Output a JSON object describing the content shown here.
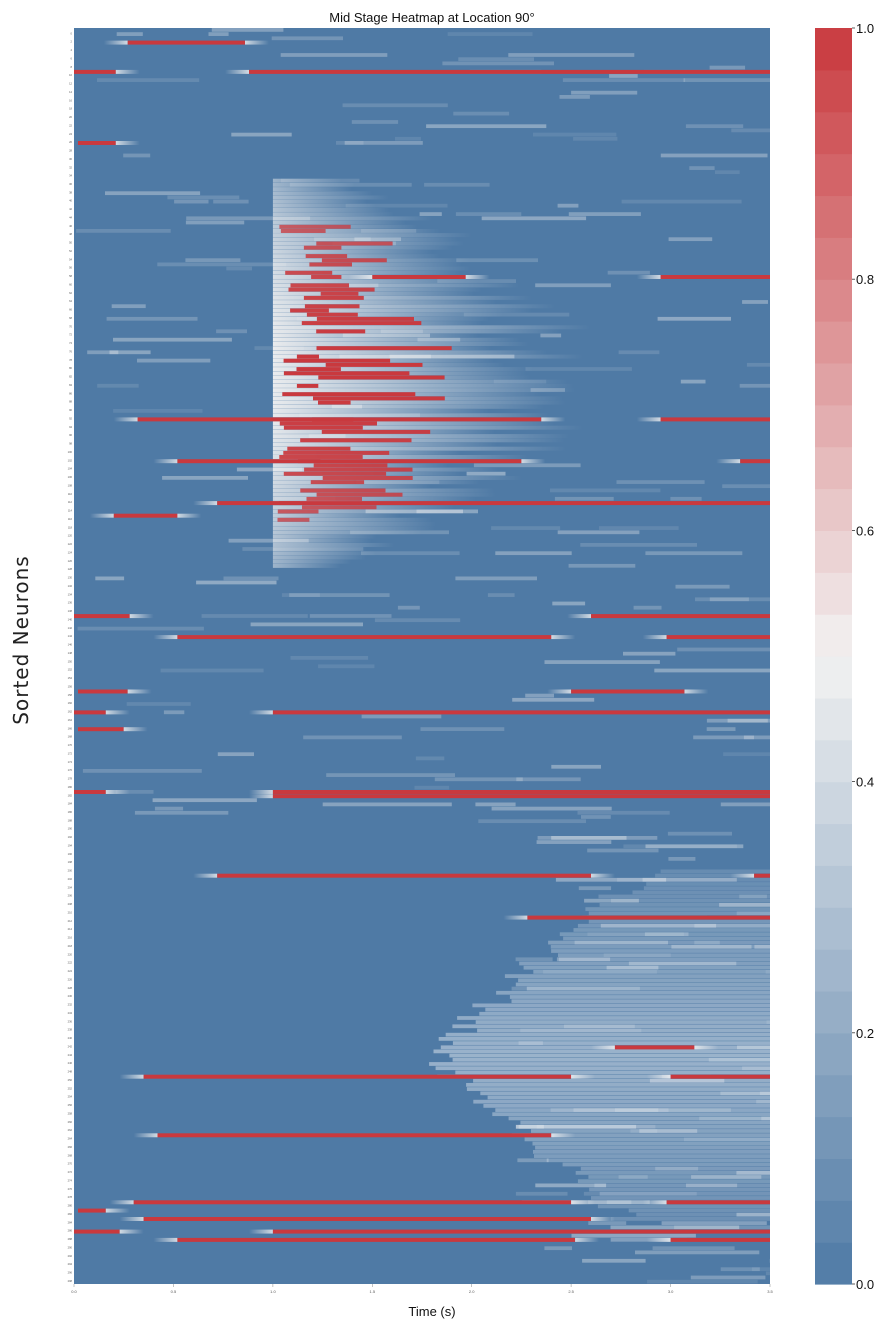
{
  "chart_data": {
    "type": "heatmap",
    "title": "Mid Stage Heatmap at Location 90°",
    "xlabel": "Time (s)",
    "ylabel": "Sorted Neurons",
    "xlim": [
      0.0,
      3.5
    ],
    "x_ticks": [
      "0.0",
      "0.5",
      "1.0",
      "1.5",
      "2.0",
      "2.5",
      "3.0",
      "3.5"
    ],
    "n_neurons": 300,
    "grid": false,
    "legend": "none",
    "colorbar": {
      "placement": "right",
      "range": [
        0.0,
        1.0
      ],
      "ticks": [
        "0.0",
        "0.2",
        "0.4",
        "0.6",
        "0.8",
        "1.0"
      ],
      "colormap": "diverging blue-white-red",
      "low_color": "#4f7aa5",
      "mid_color": "#f2f2f2",
      "high_color": "#c9393e"
    },
    "background_value": 0.0,
    "full_activation_rows": [
      {
        "neuron": 3,
        "t_start": 0.27,
        "t_end": 0.86,
        "value": 1.0
      },
      {
        "neuron": 10,
        "t_start": 0.0,
        "t_end": 0.21,
        "value": 1.0
      },
      {
        "neuron": 10,
        "t_start": 0.88,
        "t_end": 3.5,
        "value": 1.0
      },
      {
        "neuron": 27,
        "t_start": 0.02,
        "t_end": 0.21,
        "value": 1.0
      },
      {
        "neuron": 59,
        "t_start": 1.5,
        "t_end": 1.97,
        "value": 1.0
      },
      {
        "neuron": 59,
        "t_start": 2.95,
        "t_end": 3.5,
        "value": 1.0
      },
      {
        "neuron": 93,
        "t_start": 0.32,
        "t_end": 2.35,
        "value": 1.0
      },
      {
        "neuron": 93,
        "t_start": 2.95,
        "t_end": 3.5,
        "value": 1.0
      },
      {
        "neuron": 103,
        "t_start": 0.52,
        "t_end": 2.25,
        "value": 1.0
      },
      {
        "neuron": 103,
        "t_start": 3.35,
        "t_end": 3.5,
        "value": 1.0
      },
      {
        "neuron": 113,
        "t_start": 0.72,
        "t_end": 3.5,
        "value": 1.0
      },
      {
        "neuron": 116,
        "t_start": 0.2,
        "t_end": 0.52,
        "value": 1.0
      },
      {
        "neuron": 140,
        "t_start": 0.0,
        "t_end": 0.28,
        "value": 1.0
      },
      {
        "neuron": 140,
        "t_start": 2.6,
        "t_end": 3.5,
        "value": 1.0
      },
      {
        "neuron": 145,
        "t_start": 0.52,
        "t_end": 2.4,
        "value": 1.0
      },
      {
        "neuron": 145,
        "t_start": 2.98,
        "t_end": 3.5,
        "value": 1.0
      },
      {
        "neuron": 158,
        "t_start": 0.02,
        "t_end": 0.27,
        "value": 1.0
      },
      {
        "neuron": 158,
        "t_start": 2.5,
        "t_end": 3.07,
        "value": 1.0
      },
      {
        "neuron": 163,
        "t_start": 0.0,
        "t_end": 0.16,
        "value": 1.0
      },
      {
        "neuron": 163,
        "t_start": 1.0,
        "t_end": 3.5,
        "value": 1.0
      },
      {
        "neuron": 167,
        "t_start": 0.02,
        "t_end": 0.25,
        "value": 1.0
      },
      {
        "neuron": 182,
        "t_start": 0.0,
        "t_end": 0.16,
        "value": 1.0
      },
      {
        "neuron": 182,
        "t_start": 1.0,
        "t_end": 3.5,
        "value": 1.0
      },
      {
        "neuron": 183,
        "t_start": 1.0,
        "t_end": 3.5,
        "value": 1.0
      },
      {
        "neuron": 202,
        "t_start": 0.72,
        "t_end": 2.6,
        "value": 1.0
      },
      {
        "neuron": 202,
        "t_start": 3.42,
        "t_end": 3.5,
        "value": 1.0
      },
      {
        "neuron": 212,
        "t_start": 2.28,
        "t_end": 3.5,
        "value": 1.0
      },
      {
        "neuron": 243,
        "t_start": 2.72,
        "t_end": 3.12,
        "value": 1.0
      },
      {
        "neuron": 250,
        "t_start": 0.35,
        "t_end": 2.5,
        "value": 1.0
      },
      {
        "neuron": 250,
        "t_start": 3.0,
        "t_end": 3.5,
        "value": 1.0
      },
      {
        "neuron": 264,
        "t_start": 0.42,
        "t_end": 2.4,
        "value": 1.0
      },
      {
        "neuron": 280,
        "t_start": 0.3,
        "t_end": 2.5,
        "value": 1.0
      },
      {
        "neuron": 280,
        "t_start": 2.98,
        "t_end": 3.5,
        "value": 1.0
      },
      {
        "neuron": 282,
        "t_start": 0.02,
        "t_end": 0.16,
        "value": 1.0
      },
      {
        "neuron": 284,
        "t_start": 0.35,
        "t_end": 2.6,
        "value": 1.0
      },
      {
        "neuron": 287,
        "t_start": 0.0,
        "t_end": 0.23,
        "value": 1.0
      },
      {
        "neuron": 287,
        "t_start": 1.0,
        "t_end": 3.5,
        "value": 1.0
      },
      {
        "neuron": 289,
        "t_start": 0.52,
        "t_end": 2.52,
        "value": 1.0
      },
      {
        "neuron": 289,
        "t_start": 3.0,
        "t_end": 3.5,
        "value": 1.0
      }
    ]
  }
}
